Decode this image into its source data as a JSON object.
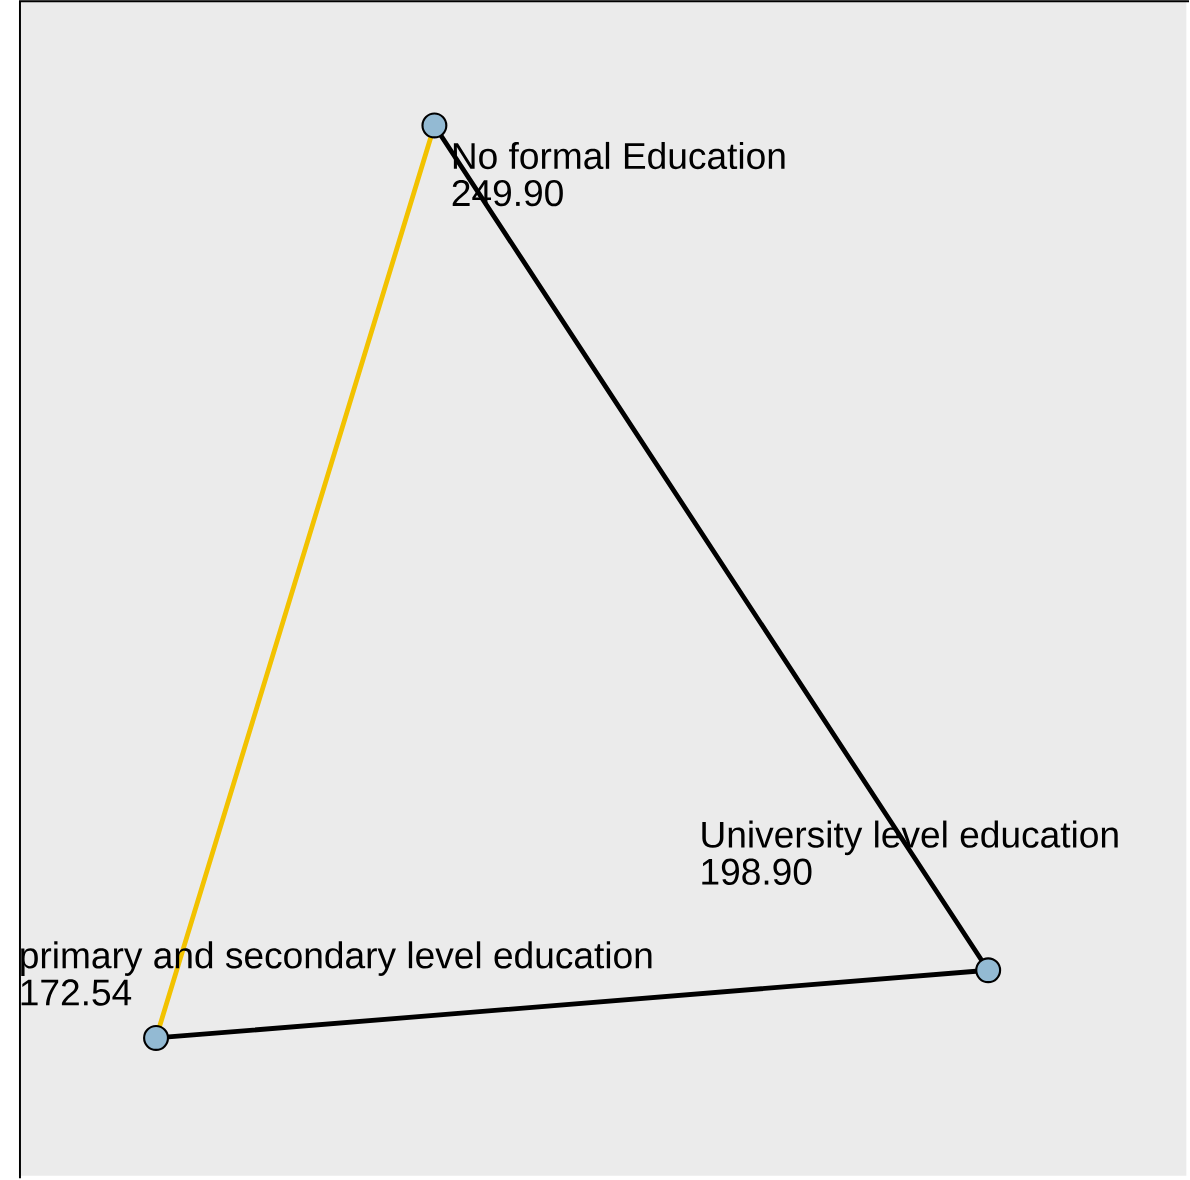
{
  "chart_data": {
    "type": "other",
    "categories": [
      "No formal Education",
      "University level education",
      "primary and secondary level education"
    ],
    "series": [
      {
        "color": "#93bad3",
        "colors": [
          "#000000",
          "#000000",
          "#f2c200"
        ],
        "values": [
          249.9,
          198.9,
          172.54
        ],
        "value_labels": [
          "249.90",
          "198.90",
          "172.54"
        ]
      }
    ]
  }
}
